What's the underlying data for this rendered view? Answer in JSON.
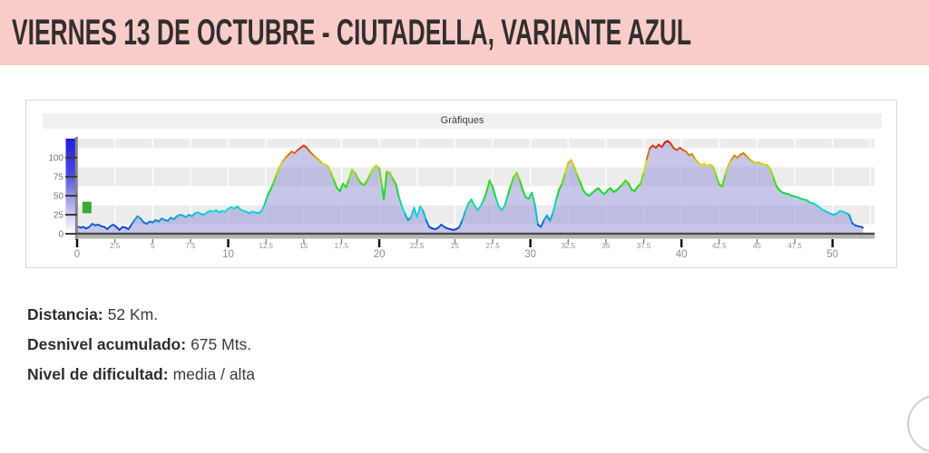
{
  "header": {
    "title": "VIERNES 13 DE OCTUBRE - CIUTADELLA, VARIANTE AZUL",
    "bg_color": "#f8cdc9",
    "text_color": "#342e2e"
  },
  "details": [
    {
      "label": "Distancia:",
      "value": "52 Km."
    },
    {
      "label": "Desnivel acumulado:",
      "value": "675 Mts."
    },
    {
      "label": "Nivel de dificultad:",
      "value": "media / alta"
    }
  ],
  "chart_data": {
    "type": "area",
    "title": "Gràfiques",
    "xlabel": "",
    "ylabel": "",
    "x_unit": "km",
    "y_unit": "m",
    "xlim": [
      0,
      52.7
    ],
    "ylim": [
      0,
      125
    ],
    "grid": "alternating-horizontal-bands-and-vertical-gridlines",
    "legend": "vertical-elevation-gradient-bar-left-of-y-axis",
    "y_ticks": [
      0,
      25,
      50,
      75,
      100
    ],
    "x_major_ticks": [
      0,
      10,
      20,
      30,
      40,
      50
    ],
    "x_minor_ticks": [
      2.5,
      5,
      7.5,
      12.5,
      15,
      17.5,
      22.5,
      25,
      27.5,
      32.5,
      35,
      37.5,
      42.5,
      45,
      47.5
    ],
    "colors": {
      "band_gray": "#ececec",
      "band_white": "#ffffff",
      "fill": "#8d8fd1",
      "fill_opacity": 0.5,
      "axis": "#4a4a4a",
      "axis_shadow": "#9b9b9b",
      "tick_label": "#8f8f8f",
      "y_label": "#777777",
      "legend_top": "#1c1ce0",
      "legend_bottom": "#ffffff",
      "marker_green": "#3aaa35"
    },
    "line_color_mapping": "hue = 240 - elevation*2 (blue low -> red high)",
    "marker": {
      "x_km": 0.35,
      "width_km": 0.6,
      "y_m": 27,
      "height_m": 15
    },
    "profile": [
      [
        0,
        10
      ],
      [
        0.2,
        8
      ],
      [
        0.4,
        9
      ],
      [
        0.6,
        7
      ],
      [
        0.8,
        9
      ],
      [
        1,
        13
      ],
      [
        1.2,
        11
      ],
      [
        1.4,
        12
      ],
      [
        1.6,
        10
      ],
      [
        1.8,
        9
      ],
      [
        2,
        6
      ],
      [
        2.2,
        10
      ],
      [
        2.4,
        12
      ],
      [
        2.6,
        9
      ],
      [
        2.8,
        5
      ],
      [
        3,
        9
      ],
      [
        3.2,
        8
      ],
      [
        3.4,
        6
      ],
      [
        3.6,
        12
      ],
      [
        3.8,
        18
      ],
      [
        4,
        23
      ],
      [
        4.2,
        20
      ],
      [
        4.4,
        15
      ],
      [
        4.6,
        13
      ],
      [
        4.8,
        16
      ],
      [
        5,
        15
      ],
      [
        5.2,
        18
      ],
      [
        5.4,
        16
      ],
      [
        5.6,
        20
      ],
      [
        5.8,
        18
      ],
      [
        6,
        17
      ],
      [
        6.2,
        21
      ],
      [
        6.4,
        19
      ],
      [
        6.6,
        23
      ],
      [
        6.8,
        25
      ],
      [
        7,
        24
      ],
      [
        7.2,
        22
      ],
      [
        7.4,
        25
      ],
      [
        7.6,
        23
      ],
      [
        7.8,
        27
      ],
      [
        8,
        28
      ],
      [
        8.2,
        26
      ],
      [
        8.4,
        25
      ],
      [
        8.6,
        28
      ],
      [
        8.8,
        30
      ],
      [
        9,
        29
      ],
      [
        9.2,
        31
      ],
      [
        9.4,
        28
      ],
      [
        9.6,
        30
      ],
      [
        9.8,
        29
      ],
      [
        10,
        33
      ],
      [
        10.2,
        35
      ],
      [
        10.4,
        33
      ],
      [
        10.6,
        36
      ],
      [
        10.8,
        32
      ],
      [
        11,
        30
      ],
      [
        11.2,
        29
      ],
      [
        11.4,
        27
      ],
      [
        11.6,
        29
      ],
      [
        11.8,
        28
      ],
      [
        12,
        27
      ],
      [
        12.2,
        30
      ],
      [
        12.4,
        38
      ],
      [
        12.6,
        50
      ],
      [
        12.8,
        58
      ],
      [
        13,
        67
      ],
      [
        13.2,
        78
      ],
      [
        13.4,
        88
      ],
      [
        13.6,
        95
      ],
      [
        13.8,
        100
      ],
      [
        14,
        104
      ],
      [
        14.2,
        108
      ],
      [
        14.4,
        106
      ],
      [
        14.6,
        110
      ],
      [
        14.8,
        113
      ],
      [
        15,
        116
      ],
      [
        15.2,
        113
      ],
      [
        15.4,
        108
      ],
      [
        15.6,
        104
      ],
      [
        15.8,
        100
      ],
      [
        16,
        97
      ],
      [
        16.2,
        93
      ],
      [
        16.4,
        91
      ],
      [
        16.6,
        89
      ],
      [
        16.8,
        80
      ],
      [
        17,
        70
      ],
      [
        17.2,
        60
      ],
      [
        17.4,
        56
      ],
      [
        17.6,
        66
      ],
      [
        17.8,
        61
      ],
      [
        18,
        72
      ],
      [
        18.2,
        84
      ],
      [
        18.4,
        80
      ],
      [
        18.6,
        72
      ],
      [
        18.8,
        66
      ],
      [
        19,
        64
      ],
      [
        19.2,
        70
      ],
      [
        19.4,
        78
      ],
      [
        19.6,
        86
      ],
      [
        19.8,
        90
      ],
      [
        20,
        86
      ],
      [
        20.2,
        60
      ],
      [
        20.3,
        45
      ],
      [
        20.5,
        82
      ],
      [
        20.7,
        80
      ],
      [
        20.9,
        72
      ],
      [
        21.1,
        65
      ],
      [
        21.3,
        48
      ],
      [
        21.5,
        36
      ],
      [
        21.7,
        26
      ],
      [
        21.9,
        18
      ],
      [
        22.1,
        22
      ],
      [
        22.3,
        34
      ],
      [
        22.5,
        22
      ],
      [
        22.7,
        36
      ],
      [
        22.9,
        30
      ],
      [
        23.1,
        18
      ],
      [
        23.3,
        9
      ],
      [
        23.5,
        7
      ],
      [
        23.7,
        6
      ],
      [
        23.9,
        8
      ],
      [
        24.1,
        12
      ],
      [
        24.3,
        9
      ],
      [
        24.5,
        7
      ],
      [
        24.7,
        6
      ],
      [
        24.9,
        5
      ],
      [
        25.1,
        6
      ],
      [
        25.3,
        9
      ],
      [
        25.5,
        18
      ],
      [
        25.7,
        30
      ],
      [
        25.9,
        40
      ],
      [
        26.1,
        45
      ],
      [
        26.3,
        37
      ],
      [
        26.5,
        31
      ],
      [
        26.7,
        36
      ],
      [
        26.9,
        44
      ],
      [
        27.1,
        55
      ],
      [
        27.3,
        70
      ],
      [
        27.5,
        62
      ],
      [
        27.7,
        48
      ],
      [
        27.9,
        36
      ],
      [
        28.1,
        31
      ],
      [
        28.3,
        37
      ],
      [
        28.5,
        50
      ],
      [
        28.7,
        63
      ],
      [
        28.9,
        75
      ],
      [
        29.1,
        80
      ],
      [
        29.3,
        70
      ],
      [
        29.5,
        57
      ],
      [
        29.7,
        48
      ],
      [
        29.9,
        46
      ],
      [
        30.1,
        54
      ],
      [
        30.3,
        38
      ],
      [
        30.5,
        12
      ],
      [
        30.7,
        9
      ],
      [
        30.9,
        18
      ],
      [
        31.1,
        24
      ],
      [
        31.3,
        17
      ],
      [
        31.5,
        28
      ],
      [
        31.7,
        44
      ],
      [
        31.9,
        58
      ],
      [
        32.1,
        66
      ],
      [
        32.3,
        80
      ],
      [
        32.5,
        93
      ],
      [
        32.7,
        97
      ],
      [
        32.9,
        88
      ],
      [
        33.1,
        77
      ],
      [
        33.3,
        68
      ],
      [
        33.5,
        57
      ],
      [
        33.7,
        52
      ],
      [
        33.9,
        50
      ],
      [
        34.1,
        54
      ],
      [
        34.3,
        57
      ],
      [
        34.5,
        60
      ],
      [
        34.7,
        55
      ],
      [
        34.9,
        52
      ],
      [
        35.1,
        57
      ],
      [
        35.3,
        60
      ],
      [
        35.5,
        55
      ],
      [
        35.7,
        57
      ],
      [
        35.9,
        61
      ],
      [
        36.1,
        65
      ],
      [
        36.3,
        70
      ],
      [
        36.5,
        66
      ],
      [
        36.7,
        58
      ],
      [
        36.9,
        56
      ],
      [
        37.1,
        62
      ],
      [
        37.3,
        66
      ],
      [
        37.5,
        80
      ],
      [
        37.7,
        98
      ],
      [
        37.9,
        112
      ],
      [
        38.1,
        116
      ],
      [
        38.3,
        113
      ],
      [
        38.5,
        117
      ],
      [
        38.7,
        114
      ],
      [
        38.9,
        120
      ],
      [
        39.1,
        122
      ],
      [
        39.3,
        118
      ],
      [
        39.5,
        112
      ],
      [
        39.7,
        110
      ],
      [
        39.9,
        113
      ],
      [
        40.1,
        110
      ],
      [
        40.3,
        108
      ],
      [
        40.5,
        103
      ],
      [
        40.7,
        105
      ],
      [
        40.9,
        98
      ],
      [
        41.1,
        94
      ],
      [
        41.3,
        90
      ],
      [
        41.5,
        92
      ],
      [
        41.7,
        89
      ],
      [
        41.9,
        91
      ],
      [
        42.1,
        88
      ],
      [
        42.3,
        76
      ],
      [
        42.5,
        65
      ],
      [
        42.7,
        62
      ],
      [
        42.9,
        78
      ],
      [
        43.1,
        90
      ],
      [
        43.3,
        97
      ],
      [
        43.5,
        103
      ],
      [
        43.7,
        100
      ],
      [
        43.9,
        104
      ],
      [
        44.1,
        106
      ],
      [
        44.3,
        102
      ],
      [
        44.5,
        98
      ],
      [
        44.7,
        95
      ],
      [
        44.9,
        93
      ],
      [
        45.1,
        94
      ],
      [
        45.3,
        92
      ],
      [
        45.5,
        91
      ],
      [
        45.7,
        90
      ],
      [
        45.9,
        84
      ],
      [
        46.1,
        73
      ],
      [
        46.3,
        62
      ],
      [
        46.5,
        57
      ],
      [
        46.7,
        54
      ],
      [
        46.9,
        53
      ],
      [
        47.1,
        52
      ],
      [
        47.3,
        50
      ],
      [
        47.5,
        49
      ],
      [
        47.7,
        48
      ],
      [
        47.9,
        46
      ],
      [
        48.1,
        45
      ],
      [
        48.3,
        44
      ],
      [
        48.5,
        41
      ],
      [
        48.7,
        40
      ],
      [
        48.9,
        38
      ],
      [
        49.1,
        35
      ],
      [
        49.3,
        32
      ],
      [
        49.5,
        30
      ],
      [
        49.7,
        28
      ],
      [
        49.9,
        26
      ],
      [
        50.1,
        25
      ],
      [
        50.3,
        27
      ],
      [
        50.5,
        30
      ],
      [
        50.7,
        29
      ],
      [
        50.9,
        27
      ],
      [
        51.1,
        25
      ],
      [
        51.3,
        14
      ],
      [
        51.5,
        11
      ],
      [
        51.7,
        10
      ],
      [
        51.9,
        9
      ],
      [
        52,
        8
      ]
    ]
  }
}
